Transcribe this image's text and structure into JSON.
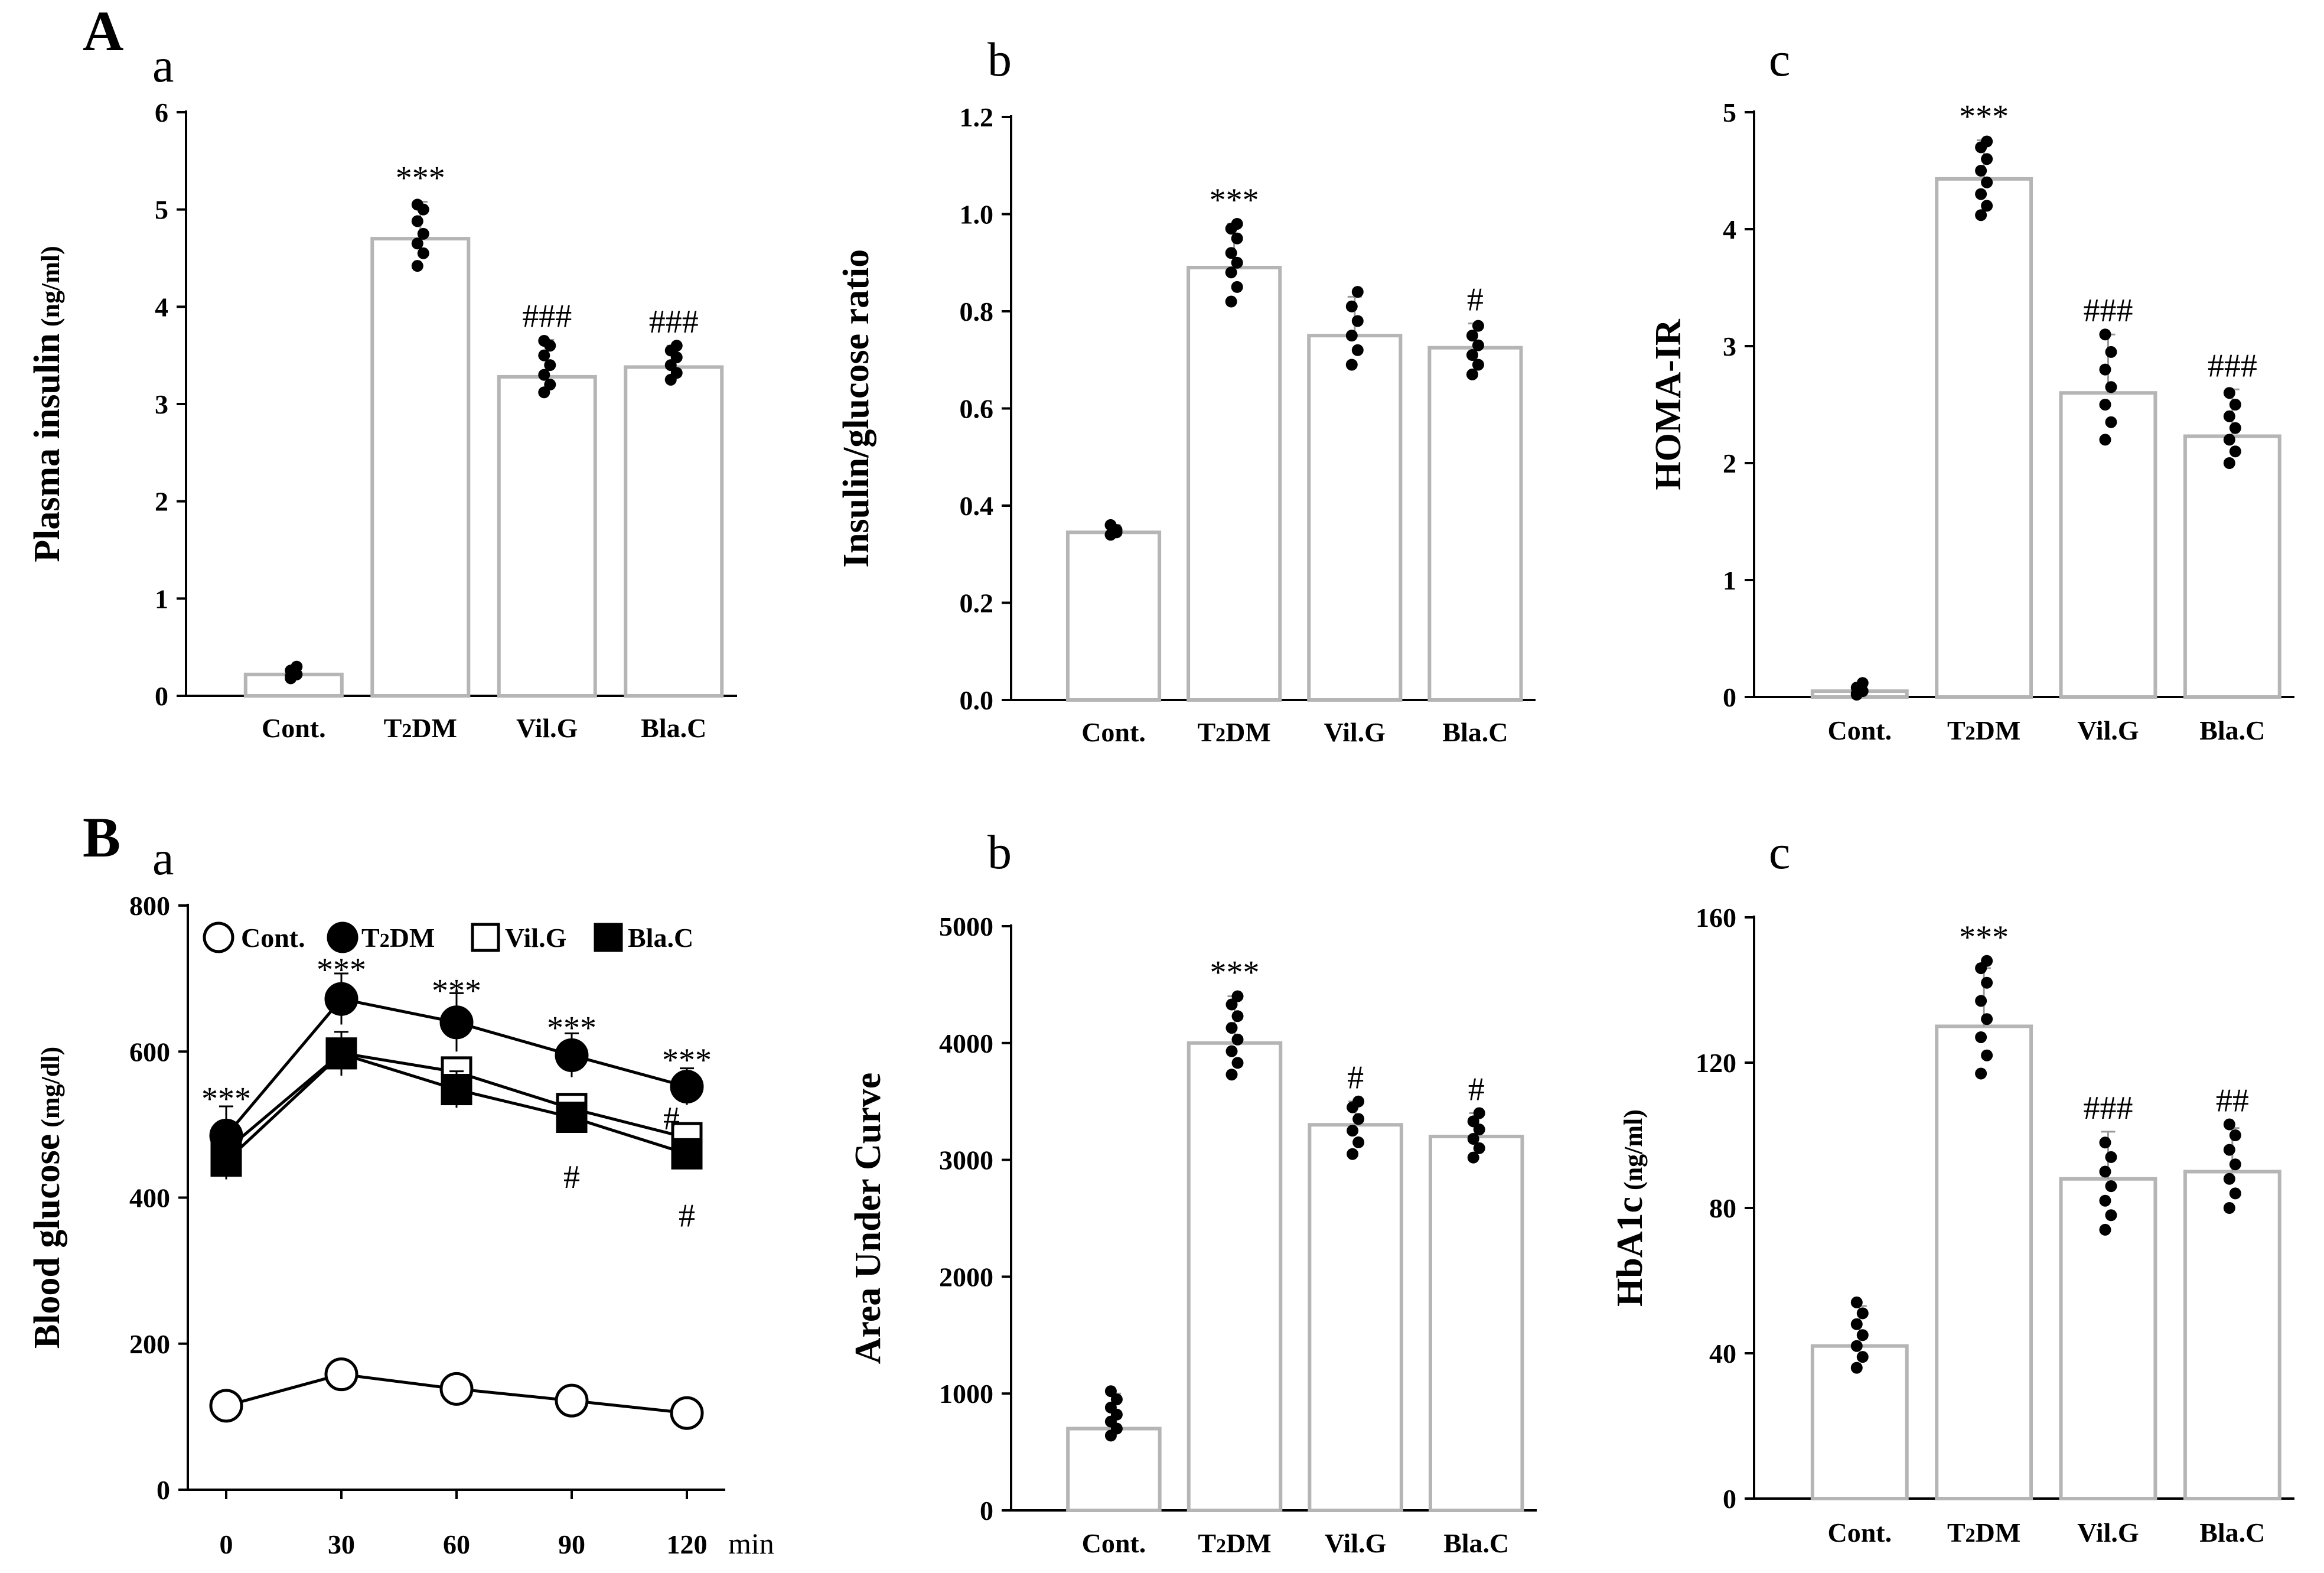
{
  "figure": {
    "panels": [
      {
        "letter": "A",
        "subs": [
          "a",
          "b",
          "c"
        ]
      },
      {
        "letter": "B",
        "subs": [
          "a",
          "b",
          "c"
        ]
      }
    ]
  },
  "chart_data": [
    {
      "id": "Aa",
      "type": "bar",
      "panel": "A",
      "sub": "a",
      "ylabel": "Plasma insulin",
      "yunit": "(ng/ml)",
      "categories": [
        "Cont.",
        "T2DM",
        "Vil.G",
        "Bla.C"
      ],
      "values": [
        0.22,
        4.7,
        3.28,
        3.38
      ],
      "errors": [
        0.07,
        0.38,
        0.38,
        0.22
      ],
      "points": [
        [
          0.18,
          0.22,
          0.26,
          0.3,
          0.2
        ],
        [
          4.42,
          4.55,
          4.65,
          4.75,
          4.88,
          5.0,
          5.05
        ],
        [
          3.12,
          3.2,
          3.3,
          3.4,
          3.5,
          3.6,
          3.65
        ],
        [
          3.25,
          3.32,
          3.4,
          3.48,
          3.55,
          3.6
        ]
      ],
      "significance": [
        "",
        "***",
        "###",
        "###"
      ],
      "ylim": [
        0,
        6
      ],
      "yticks": [
        0,
        1,
        2,
        3,
        4,
        5,
        6
      ],
      "tickDecimals": 0
    },
    {
      "id": "Ab",
      "type": "bar",
      "panel": "A",
      "sub": "b",
      "ylabel": "Insulin/glucose ratio",
      "yunit": "",
      "categories": [
        "Cont.",
        "T2DM",
        "Vil.G",
        "Bla.C"
      ],
      "values": [
        0.345,
        0.89,
        0.75,
        0.725
      ],
      "errors": [
        0.015,
        0.09,
        0.08,
        0.05
      ],
      "points": [
        [
          0.34,
          0.35,
          0.36,
          0.345
        ],
        [
          0.82,
          0.85,
          0.88,
          0.9,
          0.92,
          0.95,
          0.97,
          0.98
        ],
        [
          0.69,
          0.72,
          0.75,
          0.78,
          0.81,
          0.84
        ],
        [
          0.67,
          0.69,
          0.71,
          0.73,
          0.75,
          0.77
        ]
      ],
      "significance": [
        "",
        "***",
        "",
        "#"
      ],
      "ylim": [
        0,
        1.2
      ],
      "yticks": [
        0.0,
        0.2,
        0.4,
        0.6,
        0.8,
        1.0,
        1.2
      ],
      "tickDecimals": 1
    },
    {
      "id": "Ac",
      "type": "bar",
      "panel": "A",
      "sub": "c",
      "ylabel": "HOMA-IR",
      "yunit": "",
      "categories": [
        "Cont.",
        "T2DM",
        "Vil.G",
        "Bla.C"
      ],
      "values": [
        0.05,
        4.43,
        2.6,
        2.23
      ],
      "errors": [
        0.06,
        0.33,
        0.5,
        0.4
      ],
      "points": [
        [
          0.02,
          0.05,
          0.08,
          0.12,
          0.03
        ],
        [
          4.12,
          4.2,
          4.3,
          4.4,
          4.5,
          4.6,
          4.7,
          4.75
        ],
        [
          2.2,
          2.35,
          2.5,
          2.65,
          2.8,
          2.95,
          3.1
        ],
        [
          2.0,
          2.1,
          2.2,
          2.3,
          2.4,
          2.5,
          2.6
        ]
      ],
      "significance": [
        "",
        "***",
        "###",
        "###"
      ],
      "ylim": [
        0,
        5
      ],
      "yticks": [
        0,
        1,
        2,
        3,
        4,
        5
      ],
      "tickDecimals": 0
    },
    {
      "id": "Ba",
      "type": "line",
      "panel": "B",
      "sub": "a",
      "ylabel": "Blood glucose",
      "yunit": "(mg/dl)",
      "x": [
        0,
        30,
        60,
        90,
        120
      ],
      "xunit": "min",
      "series": [
        {
          "name": "Cont.",
          "marker": "open-circle",
          "values": [
            115,
            158,
            138,
            122,
            105
          ],
          "errors": [
            0,
            0,
            0,
            0,
            0
          ]
        },
        {
          "name": "T2DM",
          "marker": "filled-circle",
          "values": [
            485,
            672,
            640,
            595,
            552
          ],
          "errors": [
            40,
            35,
            40,
            30,
            25
          ]
        },
        {
          "name": "Vil.G",
          "marker": "open-square",
          "values": [
            465,
            598,
            572,
            522,
            482
          ],
          "errors": [
            0,
            0,
            0,
            0,
            0
          ]
        },
        {
          "name": "Bla.C",
          "marker": "filled-square",
          "values": [
            450,
            597,
            548,
            510,
            460
          ],
          "errors": [
            25,
            30,
            25,
            20,
            20
          ]
        }
      ],
      "annotations": [
        {
          "x": 0,
          "y": 535,
          "text": "***"
        },
        {
          "x": 30,
          "y": 712,
          "text": "***"
        },
        {
          "x": 60,
          "y": 683,
          "text": "***"
        },
        {
          "x": 90,
          "y": 632,
          "text": "***"
        },
        {
          "x": 120,
          "y": 588,
          "text": "***"
        },
        {
          "x": 116,
          "y": 508,
          "text": "#"
        },
        {
          "x": 90,
          "y": 428,
          "text": "#"
        },
        {
          "x": 120,
          "y": 375,
          "text": "#"
        }
      ],
      "ylim": [
        0,
        800
      ],
      "yticks": [
        0,
        200,
        400,
        600,
        800
      ],
      "tickDecimals": 0,
      "xlim": [
        -10,
        130
      ],
      "xticks": [
        0,
        30,
        60,
        90,
        120
      ]
    },
    {
      "id": "Bb",
      "type": "bar",
      "panel": "B",
      "sub": "b",
      "ylabel": "Area Under Curve",
      "yunit": "",
      "categories": [
        "Cont.",
        "T2DM",
        "Vil.G",
        "Bla.C"
      ],
      "values": [
        700,
        4000,
        3300,
        3200
      ],
      "errors": [
        300,
        400,
        200,
        200
      ],
      "points": [
        [
          640,
          700,
          760,
          820,
          880,
          950,
          1020
        ],
        [
          3730,
          3830,
          3930,
          4030,
          4130,
          4230,
          4330,
          4400
        ],
        [
          3050,
          3150,
          3250,
          3350,
          3450,
          3500
        ],
        [
          3020,
          3100,
          3180,
          3260,
          3330,
          3400
        ]
      ],
      "significance": [
        "",
        "***",
        "#",
        "#"
      ],
      "ylim": [
        0,
        5000
      ],
      "yticks": [
        0,
        1000,
        2000,
        3000,
        4000,
        5000
      ],
      "tickDecimals": 0
    },
    {
      "id": "Bc",
      "type": "bar",
      "panel": "B",
      "sub": "c",
      "ylabel": "HbA1c",
      "yunit": "(ng/ml)",
      "categories": [
        "Cont.",
        "T2DM",
        "Vil.G",
        "Bla.C"
      ],
      "values": [
        42,
        130,
        88,
        90
      ],
      "errors": [
        11,
        16,
        13,
        12
      ],
      "points": [
        [
          36,
          39,
          42,
          45,
          48,
          51,
          54
        ],
        [
          117,
          122,
          127,
          132,
          137,
          142,
          146,
          148
        ],
        [
          74,
          78,
          82,
          86,
          90,
          94,
          98
        ],
        [
          80,
          84,
          88,
          92,
          96,
          100,
          103
        ]
      ],
      "significance": [
        "",
        "***",
        "###",
        "##"
      ],
      "ylim": [
        0,
        160
      ],
      "yticks": [
        0,
        40,
        80,
        120,
        160
      ],
      "tickDecimals": 0
    }
  ]
}
